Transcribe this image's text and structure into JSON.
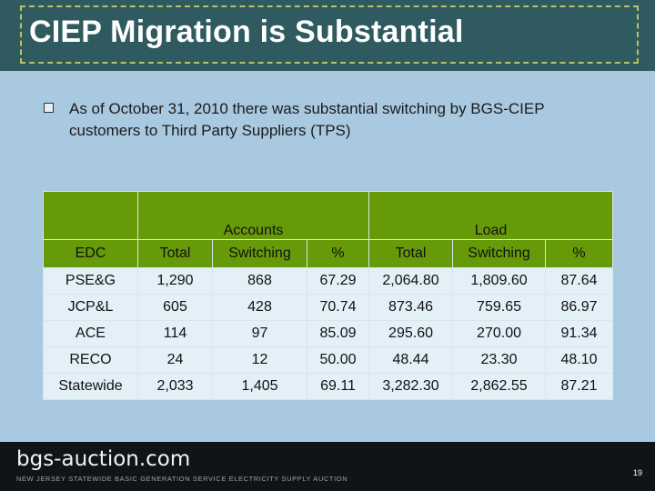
{
  "title": "CIEP Migration is Substantial",
  "bullet": "As of October 31, 2010 there was substantial switching by BGS-CIEP customers to Third Party Suppliers (TPS)",
  "table": {
    "group_accounts": "Accounts",
    "group_load": "Load",
    "headers": [
      "EDC",
      "Total",
      "Switching",
      "%",
      "Total",
      "Switching",
      "%"
    ],
    "rows": [
      [
        "PSE&G",
        "1,290",
        "868",
        "67.29",
        "2,064.80",
        "1,809.60",
        "87.64"
      ],
      [
        "JCP&L",
        "605",
        "428",
        "70.74",
        "873.46",
        "759.65",
        "86.97"
      ],
      [
        "ACE",
        "114",
        "97",
        "85.09",
        "295.60",
        "270.00",
        "91.34"
      ],
      [
        "RECO",
        "24",
        "12",
        "50.00",
        "48.44",
        "23.30",
        "48.10"
      ],
      [
        "Statewide",
        "2,033",
        "1,405",
        "69.11",
        "3,282.30",
        "2,862.55",
        "87.21"
      ]
    ]
  },
  "footer": {
    "logo": "bgs-auction.com",
    "tagline": "NEW JERSEY STATEWIDE BASIC GENERATION SERVICE ELECTRICITY SUPPLY AUCTION",
    "page_number": "19"
  },
  "colors": {
    "title_bg": "#2f5a5f",
    "table_header": "#679a08",
    "page_bg": "#a9c9e1"
  }
}
